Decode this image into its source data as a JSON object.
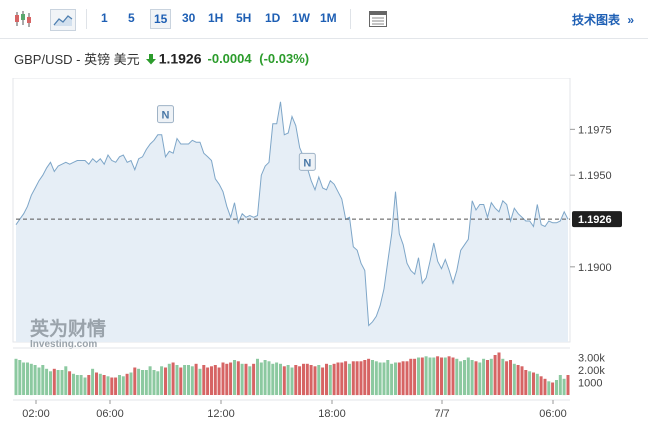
{
  "toolbar": {
    "timeframes": [
      "1",
      "5",
      "15",
      "30",
      "1H",
      "5H",
      "1D",
      "1W",
      "1M"
    ],
    "active_timeframe": "15",
    "tech_chart_label": "技术图表",
    "tech_chart_arrow": "»"
  },
  "quote": {
    "pair": "GBP/USD - 英镑 美元",
    "price": "1.1926",
    "change": "-0.0004",
    "change_pct": "(-0.03%)",
    "direction": "down",
    "change_color": "#2c9c2c"
  },
  "watermark": {
    "brand": "英为财情",
    "brand_sub": "Investing.com"
  },
  "chart_data": {
    "type": "area",
    "x_tick_labels": [
      "02:00",
      "06:00",
      "12:00",
      "18:00",
      "7/7",
      "06:00"
    ],
    "y_tick_labels": [
      "1.1975",
      "1.1950",
      "1.1900"
    ],
    "ylim": [
      1.1859,
      1.2003
    ],
    "current_price_label": "1.1926",
    "volume_tick_labels": [
      "3.00k",
      "2.00k",
      "1000"
    ],
    "volume_ylim": [
      0,
      3600
    ],
    "news_markers": [
      "N",
      "N"
    ],
    "news_marker_x_index": [
      39,
      76
    ],
    "news_marker_y": [
      1.1983,
      1.1957
    ],
    "price_series": [
      1.1923,
      1.1926,
      1.1929,
      1.1933,
      1.1939,
      1.1943,
      1.1947,
      1.195,
      1.1954,
      1.1957,
      1.1952,
      1.1955,
      1.1956,
      1.1957,
      1.1956,
      1.1957,
      1.1958,
      1.1958,
      1.1958,
      1.1956,
      1.1959,
      1.1957,
      1.1959,
      1.1956,
      1.1961,
      1.1958,
      1.1957,
      1.196,
      1.1961,
      1.1957,
      1.1958,
      1.1953,
      1.1959,
      1.196,
      1.1964,
      1.1967,
      1.1969,
      1.1972,
      1.1972,
      1.196,
      1.1963,
      1.1962,
      1.197,
      1.1967,
      1.1967,
      1.1967,
      1.1969,
      1.1968,
      1.1968,
      1.1962,
      1.196,
      1.1958,
      1.1948,
      1.1945,
      1.1941,
      1.1933,
      1.1927,
      1.1935,
      1.1924,
      1.1929,
      1.1927,
      1.1928,
      1.1927,
      1.1928,
      1.195,
      1.1955,
      1.1957,
      1.1978,
      1.1978,
      1.199,
      1.1972,
      1.1973,
      1.1982,
      1.1977,
      1.1965,
      1.196,
      1.1954,
      1.1947,
      1.1942,
      1.1949,
      1.1943,
      1.1942,
      1.1947,
      1.1945,
      1.1941,
      1.1937,
      1.1926,
      1.1927,
      1.1911,
      1.1909,
      1.1902,
      1.1898,
      1.1868,
      1.187,
      1.1873,
      1.1879,
      1.1888,
      1.1903,
      1.1918,
      1.1941,
      1.1918,
      1.1912,
      1.1902,
      1.1898,
      1.1896,
      1.1905,
      1.1891,
      1.1894,
      1.1903,
      1.1913,
      1.1903,
      1.1899,
      1.1904,
      1.1898,
      1.1891,
      1.1898,
      1.1909,
      1.1912,
      1.1915,
      1.1936,
      1.1931,
      1.1934,
      1.1934,
      1.1927,
      1.1935,
      1.1932,
      1.193,
      1.1936,
      1.1934,
      1.1925,
      1.1932,
      1.1929,
      1.1927,
      1.1925,
      1.1925,
      1.1922,
      1.1934,
      1.1923,
      1.1922,
      1.1925,
      1.1924,
      1.1924,
      1.1925,
      1.193,
      1.1926
    ],
    "volume_series": [
      2900,
      2800,
      2600,
      2600,
      2500,
      2400,
      2200,
      2400,
      2100,
      1900,
      2100,
      2000,
      2000,
      2300,
      1900,
      1700,
      1600,
      1600,
      1400,
      1600,
      2100,
      1800,
      1700,
      1600,
      1500,
      1400,
      1400,
      1600,
      1500,
      1700,
      1800,
      2200,
      2100,
      2000,
      2000,
      2300,
      2000,
      1900,
      2300,
      2200,
      2500,
      2600,
      2400,
      2200,
      2400,
      2400,
      2300,
      2500,
      2100,
      2400,
      2200,
      2300,
      2400,
      2200,
      2600,
      2500,
      2600,
      2800,
      2700,
      2500,
      2500,
      2300,
      2500,
      2900,
      2600,
      2800,
      2700,
      2500,
      2600,
      2500,
      2300,
      2400,
      2200,
      2400,
      2300,
      2500,
      2500,
      2400,
      2300,
      2400,
      2200,
      2500,
      2400,
      2500,
      2600,
      2600,
      2700,
      2500,
      2700,
      2700,
      2700,
      2800,
      2900,
      2800,
      2700,
      2600,
      2600,
      2800,
      2500,
      2600,
      2600,
      2700,
      2700,
      2900,
      2900,
      3000,
      3000,
      3100,
      3000,
      3000,
      3100,
      3000,
      3000,
      3100,
      3000,
      2900,
      2700,
      2800,
      3000,
      2800,
      2700,
      2600,
      2900,
      2800,
      2900,
      3200,
      3400,
      2900,
      2700,
      2800,
      2500,
      2400,
      2300,
      2000,
      1900,
      1800,
      1700,
      1500,
      1300,
      1100,
      1000,
      1200,
      1600,
      1300,
      1600
    ],
    "volume_colors_up": "#8cc9a0",
    "volume_colors_down": "#d66464"
  },
  "colors": {
    "line": "#7ea6c8",
    "fill": "#e6eef6",
    "price_tag_bg": "#1f1f1f",
    "grid": "#e8ebee"
  }
}
